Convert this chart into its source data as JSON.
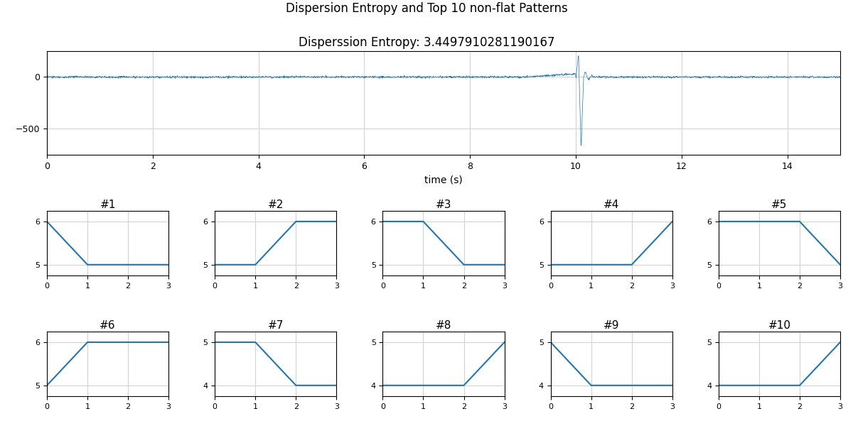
{
  "title": "Dispersion Entropy and Top 10 non-flat Patterns",
  "subtitle": "Disperssion Entropy: 3.4497910281190167",
  "xlabel": "time (s)",
  "signal_color": "#1f77b4",
  "signal_xlim": [
    0,
    15
  ],
  "signal_xticks": [
    0,
    2,
    4,
    6,
    8,
    10,
    12,
    14
  ],
  "signal_ylim": [
    -750,
    250
  ],
  "signal_yticks": [
    0,
    -500
  ],
  "patterns": [
    {
      "title": "#1",
      "x": [
        0,
        1,
        3
      ],
      "y": [
        6,
        5,
        5
      ],
      "ylim": [
        4.75,
        6.25
      ],
      "yticks": [
        5,
        6
      ]
    },
    {
      "title": "#2",
      "x": [
        0,
        1,
        2,
        3
      ],
      "y": [
        5,
        5,
        6,
        6
      ],
      "ylim": [
        4.75,
        6.25
      ],
      "yticks": [
        5,
        6
      ]
    },
    {
      "title": "#3",
      "x": [
        0,
        1,
        2,
        3
      ],
      "y": [
        6,
        6,
        5,
        5
      ],
      "ylim": [
        4.75,
        6.25
      ],
      "yticks": [
        5,
        6
      ]
    },
    {
      "title": "#4",
      "x": [
        0,
        2,
        3
      ],
      "y": [
        5,
        5,
        6
      ],
      "ylim": [
        4.75,
        6.25
      ],
      "yticks": [
        5,
        6
      ]
    },
    {
      "title": "#5",
      "x": [
        0,
        2,
        3
      ],
      "y": [
        6,
        6,
        5
      ],
      "ylim": [
        4.75,
        6.25
      ],
      "yticks": [
        5,
        6
      ]
    },
    {
      "title": "#6",
      "x": [
        0,
        1,
        3
      ],
      "y": [
        5,
        6,
        6
      ],
      "ylim": [
        4.75,
        6.25
      ],
      "yticks": [
        5,
        6
      ]
    },
    {
      "title": "#7",
      "x": [
        0,
        1,
        2,
        3
      ],
      "y": [
        5,
        5,
        4,
        4
      ],
      "ylim": [
        3.75,
        5.25
      ],
      "yticks": [
        4,
        5
      ]
    },
    {
      "title": "#8",
      "x": [
        0,
        2,
        3
      ],
      "y": [
        4,
        4,
        5
      ],
      "ylim": [
        3.75,
        5.25
      ],
      "yticks": [
        4,
        5
      ]
    },
    {
      "title": "#9",
      "x": [
        0,
        1,
        3
      ],
      "y": [
        5,
        4,
        4
      ],
      "ylim": [
        3.75,
        5.25
      ],
      "yticks": [
        4,
        5
      ]
    },
    {
      "title": "#10",
      "x": [
        0,
        2,
        3
      ],
      "y": [
        4,
        4,
        5
      ],
      "ylim": [
        3.75,
        5.25
      ],
      "yticks": [
        4,
        5
      ]
    }
  ]
}
